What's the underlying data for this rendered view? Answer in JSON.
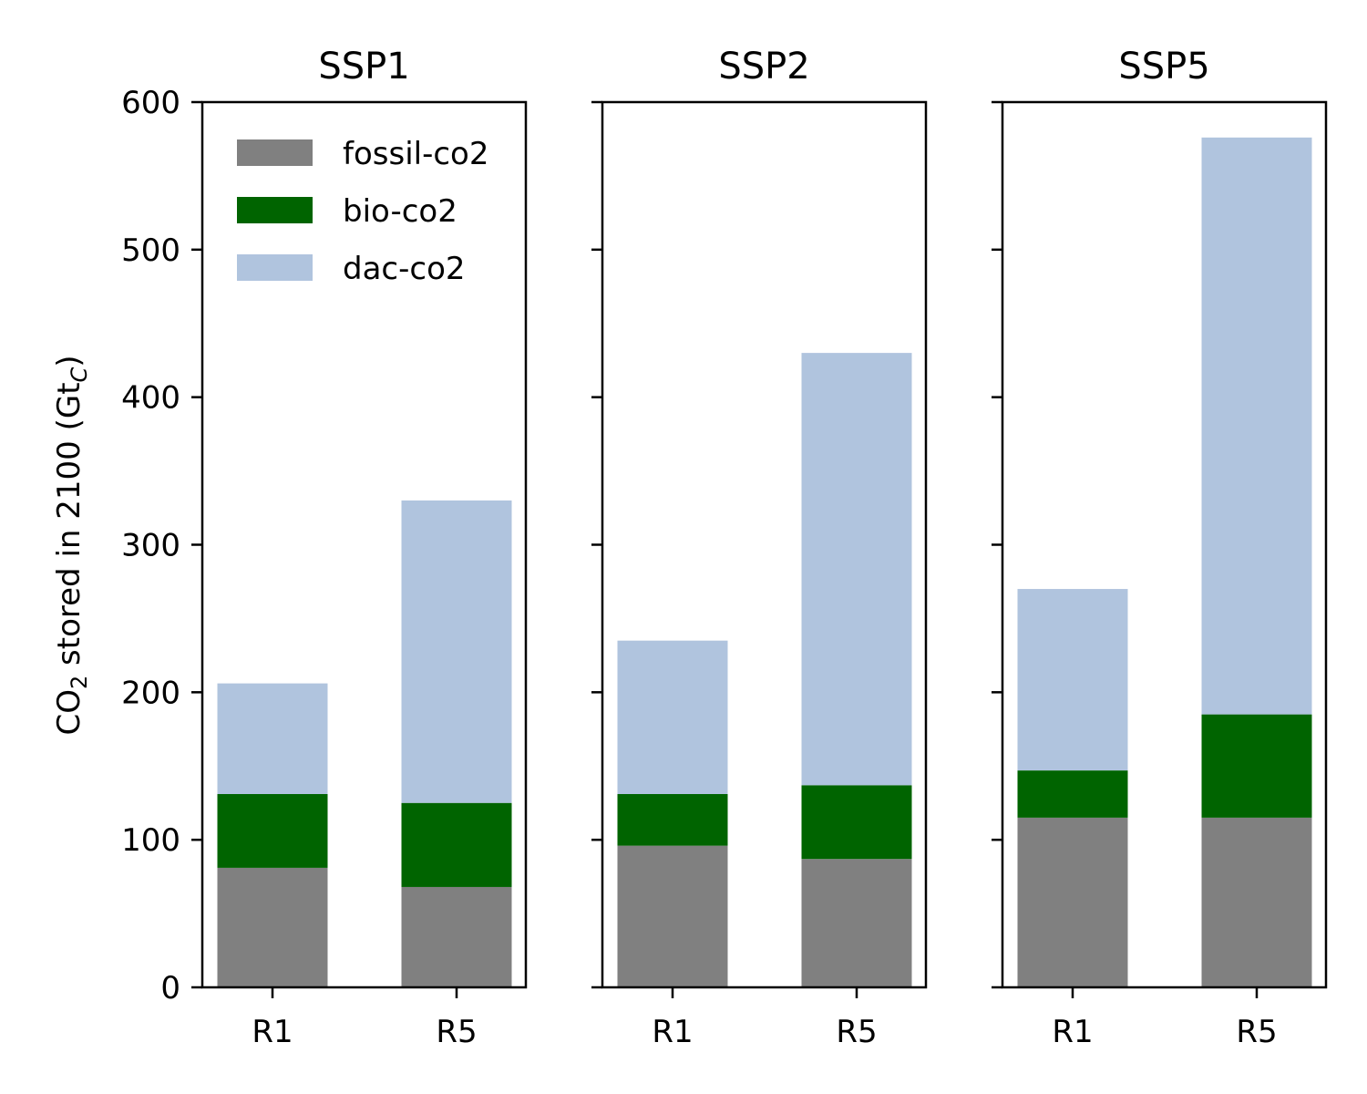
{
  "chart_data": {
    "type": "bar",
    "stacked": true,
    "ylabel_parts": [
      "CO",
      "2",
      " stored in 2100 (Gt",
      "C",
      ")"
    ],
    "ylim": [
      0,
      600
    ],
    "yticks": [
      0,
      100,
      200,
      300,
      400,
      500,
      600
    ],
    "legend": {
      "placement": "upper-left",
      "frame": false
    },
    "series": [
      {
        "name": "fossil-co2",
        "color": "#808080"
      },
      {
        "name": "bio-co2",
        "color": "#006400"
      },
      {
        "name": "dac-co2",
        "color": "#b0c4de"
      }
    ],
    "panels": [
      {
        "title": "SSP1",
        "categories": [
          "R1",
          "R5"
        ],
        "values": {
          "fossil-co2": [
            81,
            68
          ],
          "bio-co2": [
            50,
            57
          ],
          "dac-co2": [
            75,
            205
          ]
        }
      },
      {
        "title": "SSP2",
        "categories": [
          "R1",
          "R5"
        ],
        "values": {
          "fossil-co2": [
            96,
            87
          ],
          "bio-co2": [
            35,
            50
          ],
          "dac-co2": [
            104,
            293
          ]
        }
      },
      {
        "title": "SSP5",
        "categories": [
          "R1",
          "R5"
        ],
        "values": {
          "fossil-co2": [
            115,
            115
          ],
          "bio-co2": [
            32,
            70
          ],
          "dac-co2": [
            123,
            391
          ]
        }
      }
    ]
  }
}
